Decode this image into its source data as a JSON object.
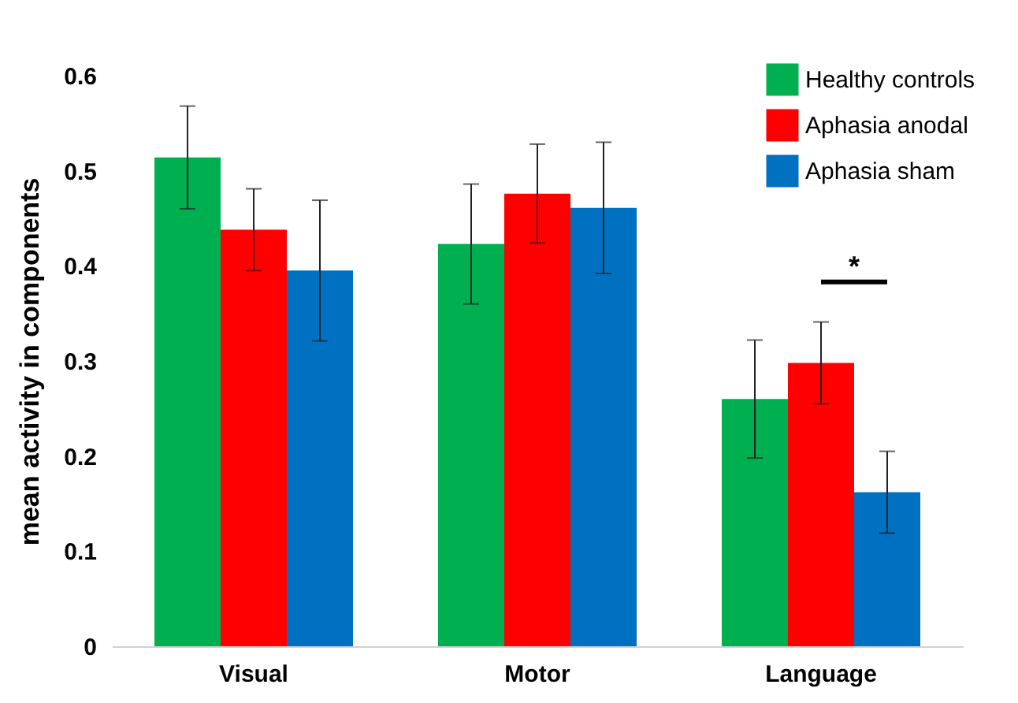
{
  "chart_data": {
    "type": "bar",
    "ylabel": "mean activity in components",
    "categories": [
      "Visual",
      "Motor",
      "Language"
    ],
    "series": [
      {
        "name": "Healthy controls",
        "color": "#00b050",
        "values": [
          0.514,
          0.423,
          0.26
        ],
        "errors": [
          0.054,
          0.063,
          0.062
        ]
      },
      {
        "name": "Aphasia anodal",
        "color": "#ff0000",
        "values": [
          0.438,
          0.476,
          0.298
        ],
        "errors": [
          0.043,
          0.052,
          0.043
        ]
      },
      {
        "name": "Aphasia sham",
        "color": "#0070c0",
        "values": [
          0.395,
          0.461,
          0.162
        ],
        "errors": [
          0.074,
          0.069,
          0.043
        ]
      }
    ],
    "ylim": [
      0,
      0.6
    ],
    "yticks": [
      0,
      0.1,
      0.2,
      0.3,
      0.4,
      0.5,
      0.6
    ],
    "annotations": [
      "*"
    ],
    "grid": false,
    "legend": "top right"
  }
}
